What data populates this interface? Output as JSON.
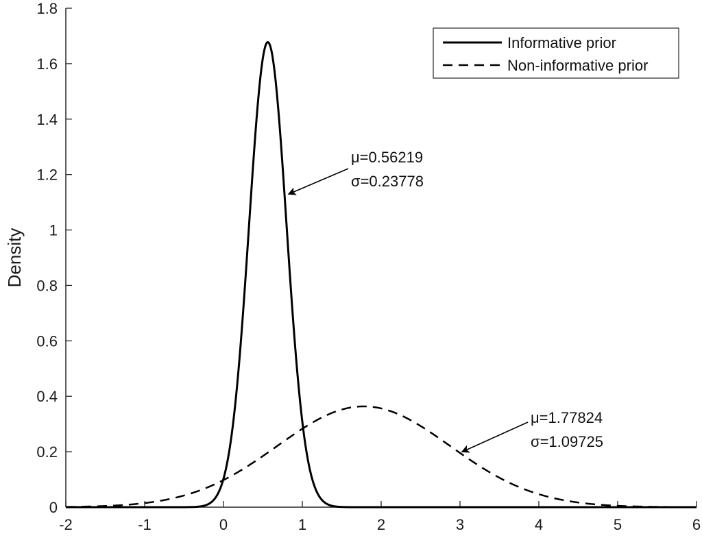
{
  "chart_data": {
    "type": "line",
    "title": "",
    "xlabel": "",
    "ylabel": "Density",
    "xlim": [
      -2,
      6
    ],
    "ylim": [
      0,
      1.8
    ],
    "xticks": [
      -2,
      -1,
      0,
      1,
      2,
      3,
      4,
      5,
      6
    ],
    "yticks": [
      0,
      0.2,
      0.4,
      0.6,
      0.8,
      1,
      1.2,
      1.4,
      1.6,
      1.8
    ],
    "xtick_labels": [
      "-2",
      "-1",
      "0",
      "1",
      "2",
      "3",
      "4",
      "5",
      "6"
    ],
    "ytick_labels": [
      "0",
      "0.2",
      "0.4",
      "0.6",
      "0.8",
      "1",
      "1.2",
      "1.4",
      "1.6",
      "1.8"
    ],
    "grid": false,
    "legend_position": "top-right",
    "series": [
      {
        "name": "Informative prior",
        "style": "solid",
        "color": "#000000",
        "distribution": "normal",
        "mu": 0.56219,
        "sigma": 0.23778
      },
      {
        "name": "Non-informative prior",
        "style": "dashed",
        "color": "#000000",
        "distribution": "normal",
        "mu": 1.77824,
        "sigma": 1.09725
      }
    ],
    "annotations": [
      {
        "line1": "μ=0.56219",
        "line2": "σ=0.23778",
        "arrow_to": [
          0.83,
          1.13
        ]
      },
      {
        "line1": "μ=1.77824",
        "line2": "σ=1.09725",
        "arrow_to": [
          3.03,
          0.2
        ]
      }
    ]
  }
}
